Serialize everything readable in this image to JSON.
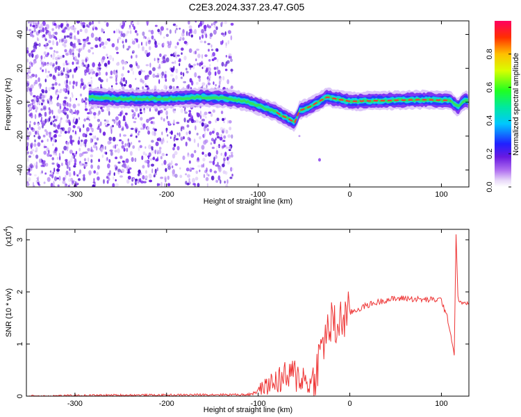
{
  "title": "C2E3.2024.337.23.47.G05",
  "chart_data": [
    {
      "type": "heatmap",
      "xlabel": "Height of straight line (km)",
      "ylabel": "Frequency (Hz)",
      "xlim": [
        -353,
        130
      ],
      "ylim": [
        -50,
        48
      ],
      "xticks": [
        -300,
        -200,
        -100,
        0,
        100
      ],
      "yticks": [
        -40,
        -20,
        0,
        20,
        40
      ],
      "noise_region_end": -128,
      "trace": {
        "x": [
          -285,
          -250,
          -200,
          -160,
          -130,
          -110,
          -95,
          -80,
          -70,
          -60,
          -55,
          -45,
          -35,
          -25,
          -15,
          0,
          40,
          80,
          110,
          118,
          125,
          130
        ],
        "freq": [
          3,
          2,
          2,
          3,
          2,
          0,
          -3,
          -6,
          -9,
          -12,
          -5,
          -3,
          0,
          3,
          2,
          0.5,
          1,
          1.5,
          1,
          -3,
          1,
          1
        ]
      },
      "colorbar": {
        "label": "Normalized spectral amplitude",
        "range": [
          0,
          1
        ],
        "ticks": [
          0.0,
          0.2,
          0.4,
          0.6,
          0.8
        ]
      },
      "grid": false
    },
    {
      "type": "line",
      "xlabel": "Height of straight line (km)",
      "ylabel": "SNR (10 * v/v)",
      "multiplier": "(x10",
      "multiplier_exp": "4",
      "multiplier_close": ")",
      "xlim": [
        -353,
        130
      ],
      "ylim": [
        0,
        3.2
      ],
      "xticks": [
        -300,
        -200,
        -100,
        0,
        100
      ],
      "yticks": [
        0,
        1,
        2,
        3
      ],
      "series": [
        {
          "color": "#ee3333",
          "x": [
            -353,
            -300,
            -250,
            -200,
            -150,
            -110,
            -100,
            -90,
            -80,
            -70,
            -60,
            -50,
            -45,
            -40,
            -35,
            -30,
            -25,
            -20,
            -15,
            -10,
            0,
            20,
            40,
            60,
            80,
            100,
            108,
            112,
            114,
            116,
            118,
            120,
            125,
            130
          ],
          "y": [
            0.0,
            0.01,
            0.02,
            0.02,
            0.03,
            0.03,
            0.12,
            0.2,
            0.3,
            0.35,
            0.4,
            0.35,
            0.2,
            0.3,
            0.6,
            1.0,
            1.2,
            1.4,
            1.3,
            1.45,
            1.6,
            1.75,
            1.85,
            1.88,
            1.85,
            1.85,
            1.4,
            1.0,
            0.8,
            3.1,
            1.9,
            1.8,
            1.78,
            1.78
          ]
        }
      ],
      "grid": false
    }
  ]
}
